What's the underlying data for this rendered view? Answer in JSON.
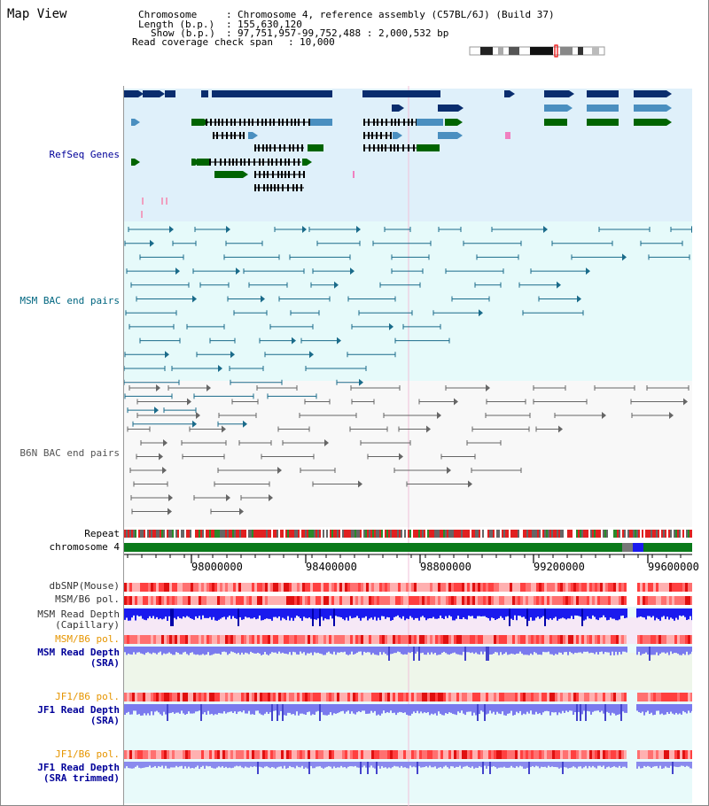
{
  "app_title": "Map View",
  "header": {
    "chromosome_label": "Chromosome",
    "chromosome_value": "Chromosome 4, reference assembly (C57BL/6J) (Build 37)",
    "length_label": "Length (b.p.)",
    "length_value": "155,630,120",
    "show_label": "Show (b.p.)",
    "show_value": "97,751,957-99,752,488 : 2,000,532 bp",
    "coverage_label": "Read coverage check span",
    "coverage_value": "10,000",
    "separator": ":"
  },
  "tracks": {
    "refseq": "RefSeq Genes",
    "msm_bac": "MSM BAC end pairs",
    "b6n_bac": "B6N BAC end pairs",
    "repeat": "Repeat",
    "chromosome": "chromosome 4",
    "dbsnp": "dbSNP(Mouse)",
    "msm_b6_pol_1": "MSM/B6 pol.",
    "msm_read_depth_cap_1": "MSM Read Depth",
    "msm_read_depth_cap_2": "(Capillary)",
    "msm_b6_pol_2": "MSM/B6 pol.",
    "msm_read_depth_sra_1": "MSM Read Depth",
    "msm_read_depth_sra_2": "(SRA)",
    "jf1_b6_pol_1": "JF1/B6 pol.",
    "jf1_read_depth_sra_1": "JF1 Read Depth",
    "jf1_read_depth_sra_2": "(SRA)",
    "jf1_b6_pol_2": "JF1/B6 pol.",
    "jf1_read_depth_trim_1": "JF1 Read Depth",
    "jf1_read_depth_trim_2": "(SRA trimmed)"
  },
  "axis_ticks": [
    "98000000",
    "98400000",
    "98800000",
    "99200000",
    "99600000"
  ],
  "colors": {
    "refseq_bg": "#dff0fa",
    "msm_bg": "#e6fafa",
    "b6n_bg": "#f7f7f7",
    "dark_blue": "#0a2d6e",
    "mid_blue": "#4a8fc0",
    "green": "#006400",
    "teal": "#1a6b8a",
    "gray": "#666666",
    "red_heat": "#ff4444",
    "depth_blue": "#1a1aee",
    "depth_light": "#7a7aee",
    "orange_label": "#e69500",
    "navy_label": "#000099"
  }
}
